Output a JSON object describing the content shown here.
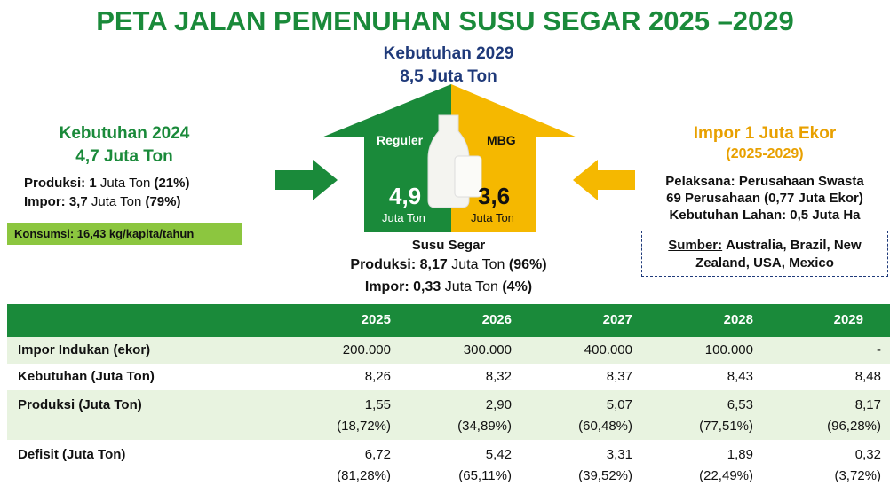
{
  "title": "PETA JALAN PEMENUHAN SUSU SEGAR 2025 –2029",
  "center": {
    "heading": "Kebutuhan 2029",
    "amount": "8,5 Juta Ton",
    "left_label": "Reguler",
    "right_label": "MBG",
    "left_value": "4,9",
    "left_unit": "Juta Ton",
    "right_value": "3,6",
    "right_unit": "Juta Ton",
    "caption": "Susu Segar",
    "lines": [
      [
        "Produksi: 8,17",
        "Juta Ton",
        "(96%)"
      ],
      [
        "Impor: 0,33",
        "Juta Ton",
        "(4%)"
      ]
    ]
  },
  "left": {
    "heading": "Kebutuhan 2024",
    "amount": "4,7 Juta Ton",
    "lines": [
      [
        "Produksi: 1",
        "Juta Ton",
        "(21%)"
      ],
      [
        "Impor: 3,7",
        "Juta Ton",
        "(79%)"
      ]
    ],
    "note": "Konsumsi: 16,43 kg/kapita/tahun"
  },
  "right": {
    "heading": "Impor 1 Juta Ekor",
    "period": "(2025-2029)",
    "lines": [
      "Pelaksana: Perusahaan Swasta",
      "69 Perusahaan (0,77 Juta Ekor)",
      "Kebutuhan Lahan: 0,5 Juta Ha"
    ],
    "source_label": "Sumber:",
    "source": "Australia, Brazil, New Zealand, USA, Mexico"
  },
  "table": {
    "header": [
      "2025",
      "2026",
      "2027",
      "2028",
      "2029"
    ],
    "rows": [
      {
        "label": "Impor Indukan (ekor)",
        "cells": [
          [
            "200.000"
          ],
          [
            "300.000"
          ],
          [
            "400.000"
          ],
          [
            "100.000"
          ],
          [
            "-"
          ]
        ]
      },
      {
        "label": "Kebutuhan (Juta Ton)",
        "cells": [
          [
            "8,26"
          ],
          [
            "8,32"
          ],
          [
            "8,37"
          ],
          [
            "8,43"
          ],
          [
            "8,48"
          ]
        ]
      },
      {
        "label": "Produksi (Juta Ton)",
        "cells": [
          [
            "1,55",
            "(18,72%)"
          ],
          [
            "2,90",
            "(34,89%)"
          ],
          [
            "5,07",
            "(60,48%)"
          ],
          [
            "6,53",
            "(77,51%)"
          ],
          [
            "8,17",
            "(96,28%)"
          ]
        ]
      },
      {
        "label": "Defisit (Juta Ton)",
        "cells": [
          [
            "6,72",
            "(81,28%)"
          ],
          [
            "5,42",
            "(65,11%)"
          ],
          [
            "3,31",
            "(39,52%)"
          ],
          [
            "1,89",
            "(22,49%)"
          ],
          [
            "0,32",
            "(3,72%)"
          ]
        ]
      }
    ]
  }
}
